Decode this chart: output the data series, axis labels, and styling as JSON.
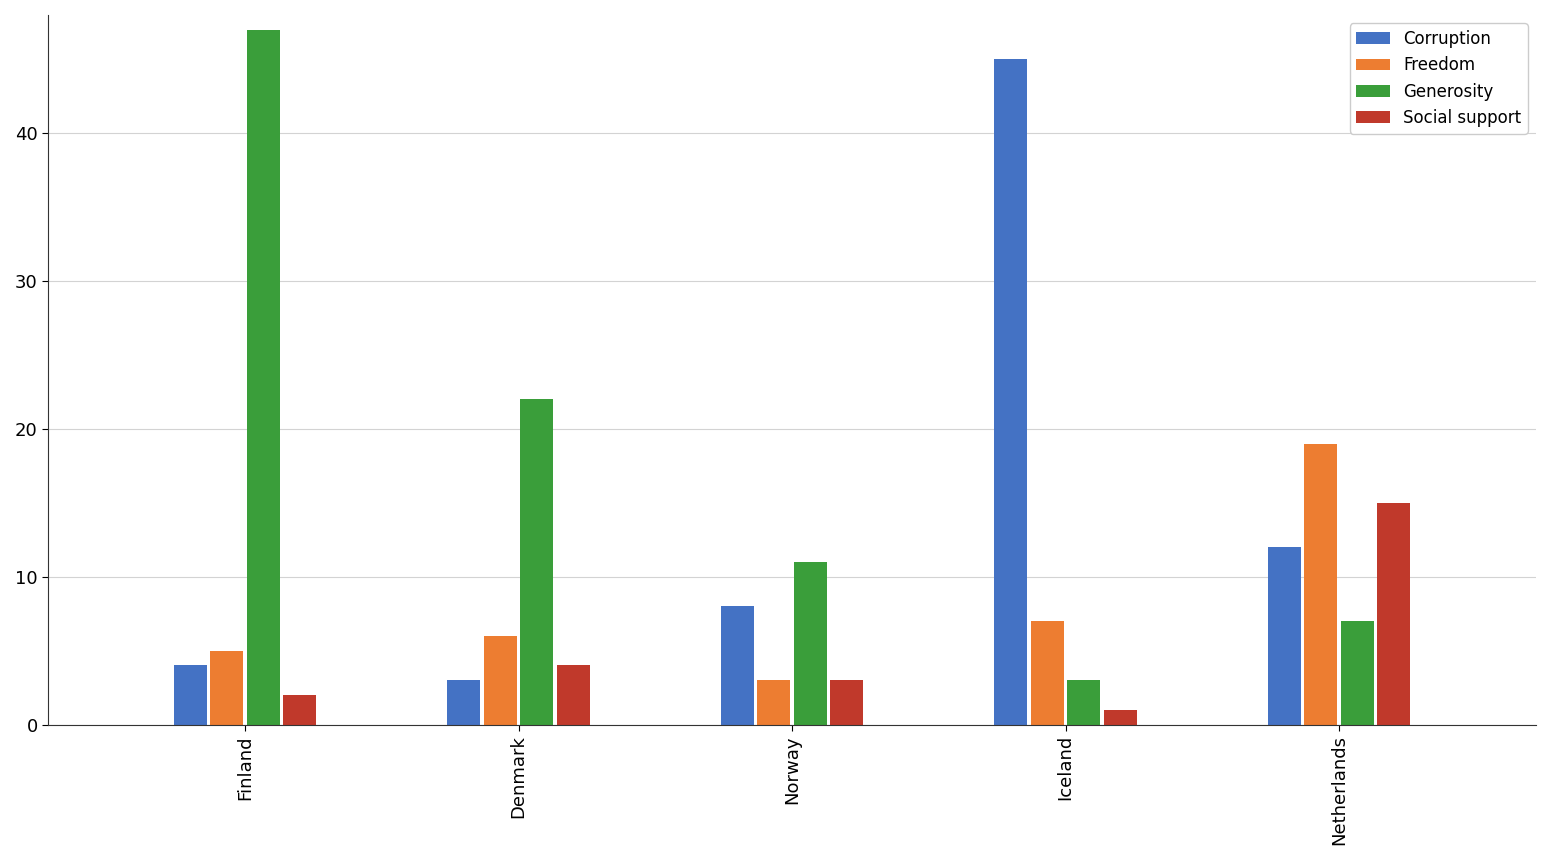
{
  "categories": [
    "Finland",
    "Denmark",
    "Norway",
    "Iceland",
    "Netherlands"
  ],
  "series": {
    "Corruption": [
      4,
      3,
      8,
      45,
      12
    ],
    "Freedom": [
      5,
      6,
      3,
      7,
      19
    ],
    "Generosity": [
      47,
      22,
      11,
      3,
      7
    ],
    "Social support": [
      2,
      4,
      3,
      1,
      15
    ]
  },
  "colors": {
    "Corruption": "#4472c4",
    "Freedom": "#ed7d31",
    "Generosity": "#3a9e3a",
    "Social support": "#c0392b"
  },
  "ylim": [
    0,
    48
  ],
  "yticks": [
    0,
    10,
    20,
    30,
    40
  ],
  "background_color": "#ffffff",
  "legend_loc": "upper right",
  "bar_width": 0.18,
  "bar_gap": 0.02
}
